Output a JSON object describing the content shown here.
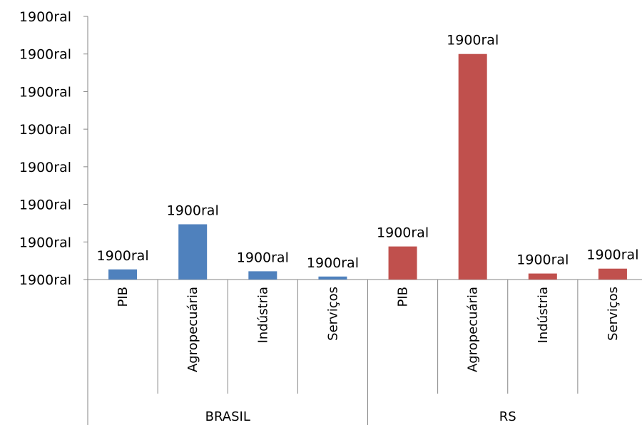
{
  "chart_data": {
    "type": "bar",
    "title": "",
    "xlabel": "",
    "ylabel": "",
    "ylim": [
      0,
      7
    ],
    "y_tick_values": [
      0,
      1,
      2,
      3,
      4,
      5,
      6,
      7
    ],
    "y_tick_labels": [
      "1900ral",
      "1900ral",
      "1900ral",
      "1900ral",
      "1900ral",
      "1900ral",
      "1900ral",
      "1900ral"
    ],
    "grid": false,
    "legend": "none",
    "groups": [
      {
        "label": "BRASIL",
        "color": "#4F81BD"
      },
      {
        "label": "RS",
        "color": "#C0504D"
      }
    ],
    "bars": [
      {
        "group": 0,
        "category": "PIB",
        "value": 0.27,
        "data_label": "1900ral"
      },
      {
        "group": 0,
        "category": "Agropecuária",
        "value": 1.47,
        "data_label": "1900ral"
      },
      {
        "group": 0,
        "category": "Indústria",
        "value": 0.22,
        "data_label": "1900ral"
      },
      {
        "group": 0,
        "category": "Serviços",
        "value": 0.08,
        "data_label": "1900ral"
      },
      {
        "group": 1,
        "category": "PIB",
        "value": 0.88,
        "data_label": "1900ral"
      },
      {
        "group": 1,
        "category": "Agropecuária",
        "value": 6.0,
        "data_label": "1900ral"
      },
      {
        "group": 1,
        "category": "Indústria",
        "value": 0.16,
        "data_label": "1900ral"
      },
      {
        "group": 1,
        "category": "Serviços",
        "value": 0.29,
        "data_label": "1900ral"
      }
    ]
  }
}
